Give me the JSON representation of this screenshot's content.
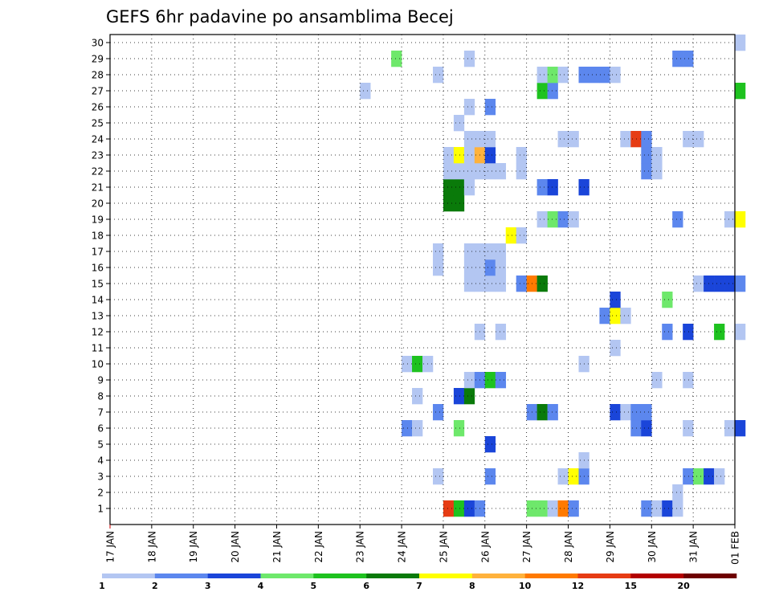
{
  "chart_data": {
    "type": "heatmap",
    "title": "GEFS 6hr padavine po ansamblima Becej",
    "ylabel": "",
    "xlabel": "",
    "members": [
      1,
      2,
      3,
      4,
      5,
      6,
      7,
      8,
      9,
      10,
      11,
      12,
      13,
      14,
      15,
      16,
      17,
      18,
      19,
      20,
      21,
      22,
      23,
      24,
      25,
      26,
      27,
      28,
      29,
      30
    ],
    "x_tick_labels": [
      "17 JAN",
      "18 JAN",
      "19 JAN",
      "20 JAN",
      "21 JAN",
      "22 JAN",
      "23 JAN",
      "24 JAN",
      "25 JAN",
      "26 JAN",
      "27 JAN",
      "28 JAN",
      "29 JAN",
      "30 JAN",
      "31 JAN",
      "01 FEB"
    ],
    "steps_per_day": 4,
    "step_hours": 6,
    "legend": {
      "thresholds": [
        "1",
        "2",
        "3",
        "4",
        "5",
        "6",
        "7",
        "8",
        "10",
        "12",
        "15",
        "20"
      ],
      "colors": [
        "#b3c6f2",
        "#5c87ee",
        "#1a45d9",
        "#6ee86b",
        "#1ec21f",
        "#0a7a0a",
        "#ffff00",
        "#ffb23c",
        "#ff7a00",
        "#e63c14",
        "#b30000",
        "#6e0000"
      ]
    },
    "cells_note": "member, step index from 17 JAN 00 UTC (6-hourly), precipitation class index into legend colors",
    "cells": [
      [
        1,
        32,
        9
      ],
      [
        1,
        33,
        4
      ],
      [
        1,
        34,
        2
      ],
      [
        1,
        35,
        1
      ],
      [
        1,
        40,
        3
      ],
      [
        1,
        41,
        3
      ],
      [
        1,
        42,
        0
      ],
      [
        1,
        43,
        8
      ],
      [
        1,
        44,
        1
      ],
      [
        1,
        51,
        1
      ],
      [
        1,
        52,
        0
      ],
      [
        1,
        53,
        2
      ],
      [
        1,
        54,
        0
      ],
      [
        2,
        54,
        0
      ],
      [
        3,
        31,
        0
      ],
      [
        3,
        36,
        1
      ],
      [
        3,
        43,
        0
      ],
      [
        3,
        44,
        6
      ],
      [
        3,
        45,
        1
      ],
      [
        3,
        55,
        1
      ],
      [
        3,
        56,
        3
      ],
      [
        3,
        57,
        2
      ],
      [
        3,
        58,
        0
      ],
      [
        4,
        45,
        0
      ],
      [
        5,
        36,
        2
      ],
      [
        6,
        28,
        1
      ],
      [
        6,
        29,
        0
      ],
      [
        6,
        33,
        3
      ],
      [
        6,
        50,
        1
      ],
      [
        6,
        51,
        2
      ],
      [
        6,
        55,
        0
      ],
      [
        6,
        59,
        0
      ],
      [
        6,
        60,
        2
      ],
      [
        7,
        31,
        1
      ],
      [
        7,
        40,
        1
      ],
      [
        7,
        41,
        5
      ],
      [
        7,
        42,
        1
      ],
      [
        7,
        48,
        2
      ],
      [
        7,
        49,
        0
      ],
      [
        7,
        50,
        1
      ],
      [
        7,
        51,
        1
      ],
      [
        8,
        29,
        0
      ],
      [
        8,
        33,
        2
      ],
      [
        8,
        34,
        5
      ],
      [
        9,
        34,
        0
      ],
      [
        9,
        35,
        1
      ],
      [
        9,
        36,
        4
      ],
      [
        9,
        37,
        1
      ],
      [
        9,
        52,
        0
      ],
      [
        9,
        55,
        0
      ],
      [
        10,
        28,
        0
      ],
      [
        10,
        29,
        4
      ],
      [
        10,
        30,
        0
      ],
      [
        10,
        45,
        0
      ],
      [
        11,
        48,
        0
      ],
      [
        12,
        35,
        0
      ],
      [
        12,
        37,
        0
      ],
      [
        12,
        53,
        1
      ],
      [
        12,
        55,
        2
      ],
      [
        12,
        58,
        4
      ],
      [
        12,
        60,
        0
      ],
      [
        13,
        47,
        1
      ],
      [
        13,
        48,
        6
      ],
      [
        13,
        49,
        0
      ],
      [
        14,
        48,
        2
      ],
      [
        14,
        53,
        3
      ],
      [
        15,
        34,
        0
      ],
      [
        15,
        35,
        0
      ],
      [
        15,
        36,
        0
      ],
      [
        15,
        37,
        0
      ],
      [
        15,
        39,
        1
      ],
      [
        15,
        40,
        8
      ],
      [
        15,
        41,
        5
      ],
      [
        15,
        56,
        0
      ],
      [
        15,
        57,
        2
      ],
      [
        15,
        58,
        2
      ],
      [
        15,
        59,
        2
      ],
      [
        15,
        60,
        1
      ],
      [
        16,
        31,
        0
      ],
      [
        16,
        34,
        0
      ],
      [
        16,
        35,
        0
      ],
      [
        16,
        36,
        1
      ],
      [
        16,
        37,
        0
      ],
      [
        17,
        31,
        0
      ],
      [
        17,
        34,
        0
      ],
      [
        17,
        35,
        0
      ],
      [
        17,
        36,
        0
      ],
      [
        17,
        37,
        0
      ],
      [
        18,
        38,
        6
      ],
      [
        18,
        39,
        0
      ],
      [
        19,
        41,
        0
      ],
      [
        19,
        42,
        3
      ],
      [
        19,
        43,
        1
      ],
      [
        19,
        44,
        0
      ],
      [
        19,
        54,
        1
      ],
      [
        19,
        59,
        0
      ],
      [
        19,
        60,
        6
      ],
      [
        20,
        32,
        5
      ],
      [
        20,
        33,
        5
      ],
      [
        21,
        32,
        5
      ],
      [
        21,
        33,
        5
      ],
      [
        21,
        34,
        0
      ],
      [
        21,
        41,
        1
      ],
      [
        21,
        42,
        2
      ],
      [
        21,
        45,
        2
      ],
      [
        22,
        32,
        0
      ],
      [
        22,
        33,
        0
      ],
      [
        22,
        34,
        0
      ],
      [
        22,
        35,
        0
      ],
      [
        22,
        36,
        0
      ],
      [
        22,
        37,
        0
      ],
      [
        22,
        39,
        0
      ],
      [
        22,
        51,
        1
      ],
      [
        22,
        52,
        0
      ],
      [
        23,
        32,
        0
      ],
      [
        23,
        33,
        6
      ],
      [
        23,
        34,
        0
      ],
      [
        23,
        35,
        7
      ],
      [
        23,
        36,
        2
      ],
      [
        23,
        39,
        0
      ],
      [
        23,
        51,
        1
      ],
      [
        23,
        52,
        0
      ],
      [
        24,
        34,
        0
      ],
      [
        24,
        35,
        0
      ],
      [
        24,
        36,
        0
      ],
      [
        24,
        43,
        0
      ],
      [
        24,
        44,
        0
      ],
      [
        24,
        49,
        0
      ],
      [
        24,
        50,
        9
      ],
      [
        24,
        51,
        1
      ],
      [
        24,
        55,
        0
      ],
      [
        24,
        56,
        0
      ],
      [
        25,
        33,
        0
      ],
      [
        26,
        34,
        0
      ],
      [
        26,
        36,
        1
      ],
      [
        27,
        24,
        0
      ],
      [
        27,
        41,
        4
      ],
      [
        27,
        42,
        1
      ],
      [
        27,
        60,
        4
      ],
      [
        28,
        31,
        0
      ],
      [
        28,
        41,
        0
      ],
      [
        28,
        42,
        3
      ],
      [
        28,
        43,
        0
      ],
      [
        28,
        45,
        1
      ],
      [
        28,
        46,
        1
      ],
      [
        28,
        47,
        1
      ],
      [
        28,
        48,
        0
      ],
      [
        29,
        27,
        3
      ],
      [
        29,
        34,
        0
      ],
      [
        29,
        54,
        1
      ],
      [
        29,
        55,
        1
      ],
      [
        30,
        60,
        0
      ]
    ]
  }
}
